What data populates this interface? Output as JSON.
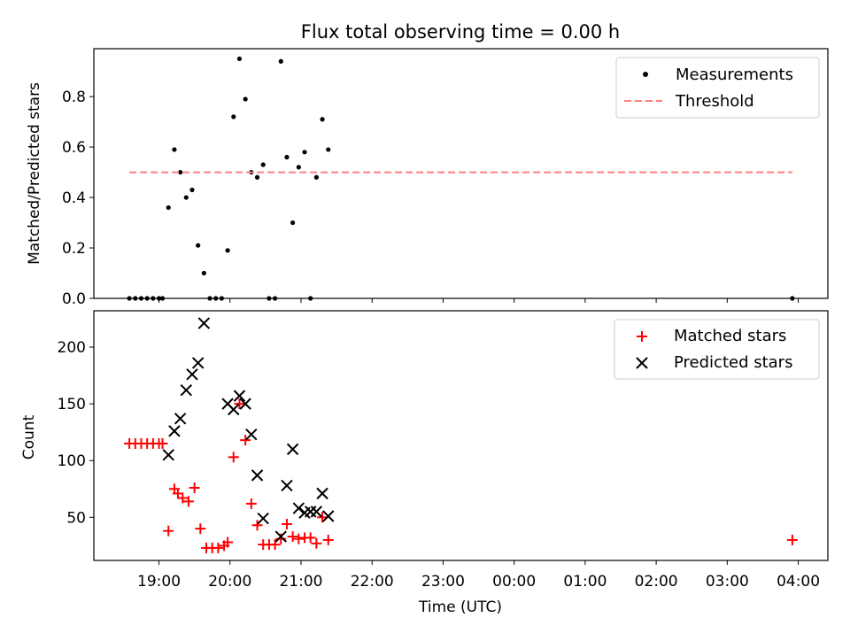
{
  "figure": {
    "title": "Flux total observing time = 0.00 h",
    "xlabel": "Time (UTC)"
  },
  "x_ticks": [
    "19:00",
    "20:00",
    "21:00",
    "22:00",
    "23:00",
    "00:00",
    "01:00",
    "02:00",
    "03:00",
    "04:00"
  ],
  "chart_data": [
    {
      "type": "scatter",
      "ylabel": "Matched/Predicted stars",
      "ylim": [
        0,
        0.99
      ],
      "yticks": [
        "0.0",
        "0.2",
        "0.4",
        "0.6",
        "0.8"
      ],
      "xlim": [
        "18:05",
        "28:25"
      ],
      "legend": {
        "placement": "top-right",
        "entries": [
          "Measurements",
          "Threshold"
        ]
      },
      "series": [
        {
          "name": "Measurements",
          "marker": "dot",
          "color": "#000000",
          "points": [
            [
              "18:35",
              0.0
            ],
            [
              "18:40",
              0.0
            ],
            [
              "18:45",
              0.0
            ],
            [
              "18:50",
              0.0
            ],
            [
              "18:55",
              0.0
            ],
            [
              "19:00",
              0.0
            ],
            [
              "19:03",
              0.0
            ],
            [
              "19:08",
              0.36
            ],
            [
              "19:13",
              0.59
            ],
            [
              "19:18",
              0.5
            ],
            [
              "19:23",
              0.4
            ],
            [
              "19:28",
              0.43
            ],
            [
              "19:33",
              0.21
            ],
            [
              "19:38",
              0.1
            ],
            [
              "19:43",
              0.0
            ],
            [
              "19:48",
              0.0
            ],
            [
              "19:53",
              0.0
            ],
            [
              "19:58",
              0.19
            ],
            [
              "20:03",
              0.72
            ],
            [
              "20:08",
              0.95
            ],
            [
              "20:13",
              0.79
            ],
            [
              "20:18",
              0.5
            ],
            [
              "20:23",
              0.48
            ],
            [
              "20:28",
              0.53
            ],
            [
              "20:33",
              0.0
            ],
            [
              "20:38",
              0.0
            ],
            [
              "20:43",
              0.94
            ],
            [
              "20:48",
              0.56
            ],
            [
              "20:53",
              0.3
            ],
            [
              "20:58",
              0.52
            ],
            [
              "21:03",
              0.58
            ],
            [
              "21:08",
              0.0
            ],
            [
              "21:13",
              0.48
            ],
            [
              "21:18",
              0.71
            ],
            [
              "21:23",
              0.59
            ],
            [
              "27:55",
              0.0
            ]
          ]
        },
        {
          "name": "Threshold",
          "marker": "dashed-line",
          "color": "#ff7f7f",
          "points": [
            [
              "18:35",
              0.5
            ],
            [
              "27:55",
              0.5
            ]
          ]
        }
      ]
    },
    {
      "type": "scatter",
      "ylabel": "Count",
      "ylim": [
        12,
        232
      ],
      "yticks": [
        "50",
        "100",
        "150",
        "200"
      ],
      "xlim": [
        "18:05",
        "28:25"
      ],
      "legend": {
        "placement": "top-right",
        "entries": [
          "Matched stars",
          "Predicted stars"
        ]
      },
      "series": [
        {
          "name": "Matched stars",
          "marker": "plus",
          "color": "#ff0000",
          "points": [
            [
              "18:35",
              115
            ],
            [
              "18:40",
              115
            ],
            [
              "18:45",
              115
            ],
            [
              "18:50",
              115
            ],
            [
              "18:55",
              115
            ],
            [
              "19:00",
              115
            ],
            [
              "19:03",
              115
            ],
            [
              "19:08",
              38
            ],
            [
              "19:13",
              75
            ],
            [
              "19:16",
              71
            ],
            [
              "19:20",
              67
            ],
            [
              "19:25",
              64
            ],
            [
              "19:30",
              76
            ],
            [
              "19:35",
              40
            ],
            [
              "19:40",
              23
            ],
            [
              "19:45",
              23
            ],
            [
              "19:50",
              23
            ],
            [
              "19:55",
              25
            ],
            [
              "19:58",
              28
            ],
            [
              "20:03",
              103
            ],
            [
              "20:08",
              150
            ],
            [
              "20:13",
              118
            ],
            [
              "20:18",
              62
            ],
            [
              "20:23",
              43
            ],
            [
              "20:28",
              26
            ],
            [
              "20:33",
              26
            ],
            [
              "20:38",
              26
            ],
            [
              "20:43",
              31
            ],
            [
              "20:48",
              44
            ],
            [
              "20:53",
              33
            ],
            [
              "20:58",
              31
            ],
            [
              "21:03",
              32
            ],
            [
              "21:08",
              32
            ],
            [
              "21:13",
              27
            ],
            [
              "21:18",
              50
            ],
            [
              "21:23",
              30
            ],
            [
              "27:55",
              30
            ]
          ]
        },
        {
          "name": "Predicted stars",
          "marker": "x",
          "color": "#000000",
          "points": [
            [
              "19:08",
              105
            ],
            [
              "19:13",
              126
            ],
            [
              "19:18",
              137
            ],
            [
              "19:23",
              162
            ],
            [
              "19:28",
              176
            ],
            [
              "19:33",
              186
            ],
            [
              "19:38",
              221
            ],
            [
              "19:58",
              150
            ],
            [
              "20:03",
              145
            ],
            [
              "20:08",
              157
            ],
            [
              "20:13",
              150
            ],
            [
              "20:18",
              123
            ],
            [
              "20:23",
              87
            ],
            [
              "20:28",
              49
            ],
            [
              "20:43",
              33
            ],
            [
              "20:48",
              78
            ],
            [
              "20:53",
              110
            ],
            [
              "20:58",
              58
            ],
            [
              "21:03",
              54
            ],
            [
              "21:08",
              55
            ],
            [
              "21:13",
              55
            ],
            [
              "21:18",
              71
            ],
            [
              "21:23",
              51
            ]
          ]
        }
      ]
    }
  ]
}
